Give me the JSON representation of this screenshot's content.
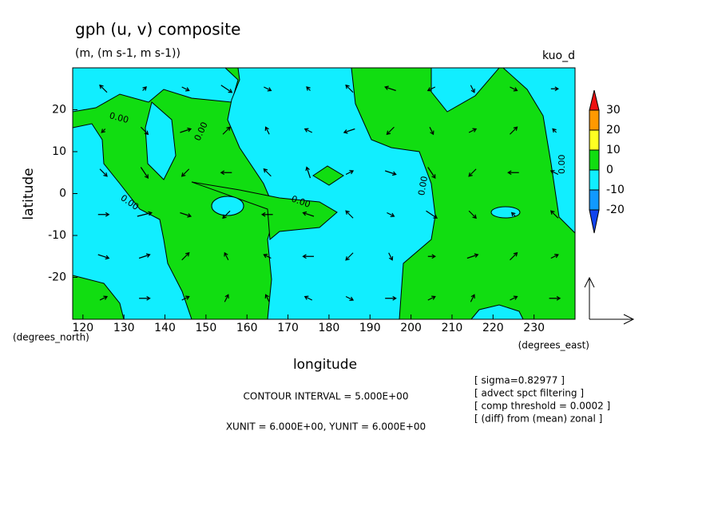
{
  "chart_data": {
    "type": "vector-contour",
    "title": "gph (u, v) composite",
    "subtitle": "(m, (m s-1, m s-1))",
    "run_label": "kuo_d",
    "x_label": "longitude",
    "y_label": "latitude",
    "y_units": "(degrees_north)",
    "x_units": "(degrees_east)",
    "xlim": [
      117.5,
      240
    ],
    "ylim": [
      -30,
      30
    ],
    "xticks": [
      120,
      130,
      140,
      150,
      160,
      170,
      180,
      190,
      200,
      210,
      220,
      230
    ],
    "yticks": [
      -20,
      -10,
      0,
      10,
      20
    ],
    "colorbar": {
      "levels": [
        30,
        20,
        10,
        0,
        -10,
        -20
      ],
      "colors": [
        "#ee1111",
        "#ff9900",
        "#ffff22",
        "#11dd11",
        "#11eeff",
        "#1199ff",
        "#1144ee"
      ]
    },
    "contour_labels": [
      "0.00",
      "0.00",
      "0.00",
      "0.00",
      "0.00",
      "0.00"
    ],
    "notes": [
      "CONTOUR INTERVAL = 5.000E+00",
      "XUNIT = 6.000E+00, YUNIT = 6.000E+00"
    ],
    "annotations": [
      "[ sigma=0.82977 ]",
      "[ advect spct filtering ]",
      "[ comp threshold = 0.0002 ]",
      "[ (diff) from (mean) zonal ]"
    ],
    "vectors": {
      "lon": [
        125,
        135,
        145,
        155,
        165,
        175,
        185,
        195,
        205,
        215,
        225,
        235
      ],
      "lat": [
        -25,
        -15,
        -5,
        5,
        15,
        25
      ],
      "u": [
        [
          1,
          1.5,
          1,
          0.5,
          -0.5,
          -1,
          1,
          1.5,
          1,
          0.5,
          1,
          1.5
        ],
        [
          1.5,
          1.5,
          1,
          -0.5,
          -1,
          -1.5,
          -1,
          0.5,
          1,
          1.5,
          1,
          1
        ],
        [
          1.5,
          2,
          1.5,
          -1,
          -1.5,
          -1.5,
          -1,
          1,
          1.5,
          1,
          -0.5,
          -1
        ],
        [
          1,
          1,
          -1,
          -1.5,
          -1,
          -0.5,
          1,
          1.5,
          1,
          -1,
          -1.5,
          -1
        ],
        [
          -0.5,
          1,
          1.5,
          1,
          -0.5,
          -1,
          -1.5,
          -1,
          0.5,
          1,
          1,
          -0.5
        ],
        [
          -1,
          0.5,
          1,
          1.5,
          1,
          -0.5,
          -1,
          -1.5,
          -1,
          0.5,
          1,
          1
        ]
      ],
      "v": [
        [
          0.5,
          0,
          0.5,
          1,
          1,
          0.5,
          -0.5,
          0,
          0.5,
          1,
          0.5,
          0
        ],
        [
          -0.5,
          0.5,
          1,
          1,
          0.5,
          0,
          -1,
          -1,
          0,
          0.5,
          1,
          0.5
        ],
        [
          0,
          0.5,
          -0.5,
          -1,
          0,
          0.5,
          1,
          -0.5,
          -1,
          -1,
          0.5,
          1
        ],
        [
          -1,
          -1.5,
          -1,
          0,
          1,
          1.5,
          0.5,
          -0.5,
          -1.5,
          -1,
          0,
          0.5
        ],
        [
          -0.5,
          -1,
          0.5,
          1,
          1,
          0.5,
          -0.5,
          -1,
          -1,
          0.5,
          1,
          0.5
        ],
        [
          1,
          0.5,
          -0.5,
          -1,
          -0.5,
          0.5,
          1,
          0.5,
          -0.5,
          -1,
          -0.5,
          0
        ]
      ]
    }
  }
}
